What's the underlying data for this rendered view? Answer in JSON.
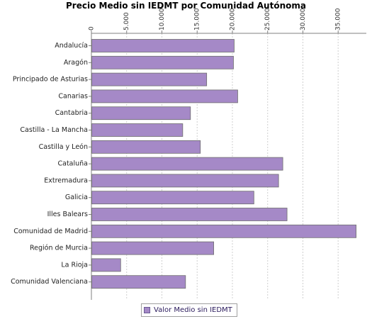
{
  "chart_data": {
    "type": "bar",
    "orientation": "horizontal",
    "title": "Precio Medio sin IEDMT por Comunidad Autónoma",
    "xlabel": "",
    "ylabel": "",
    "xlim": [
      0,
      39000
    ],
    "x_ticks": [
      0,
      5000,
      10000,
      15000,
      20000,
      25000,
      30000,
      35000
    ],
    "x_tick_labels": [
      "0",
      "5.000",
      "10.000",
      "15.000",
      "20.000",
      "25.000",
      "30.000",
      "35.000"
    ],
    "x_axis_position": "top",
    "grid": true,
    "legend_position": "bottom",
    "categories": [
      "Andalucía",
      "Aragón",
      "Principado de Asturias",
      "Canarias",
      "Cantabria",
      "Castilla - La Mancha",
      "Castilla y León",
      "Cataluña",
      "Extremadura",
      "Galicia",
      "Illes Balears",
      "Comunidad de Madrid",
      "Región de Murcia",
      "La Rioja",
      "Comunidad Valenciana"
    ],
    "series": [
      {
        "name": "Valor Medio sin IEDMT",
        "color": "#a589c7",
        "values": [
          20200,
          20100,
          16300,
          20700,
          14000,
          12900,
          15400,
          27100,
          26500,
          23000,
          27700,
          37500,
          17300,
          4100,
          13300
        ]
      }
    ]
  }
}
